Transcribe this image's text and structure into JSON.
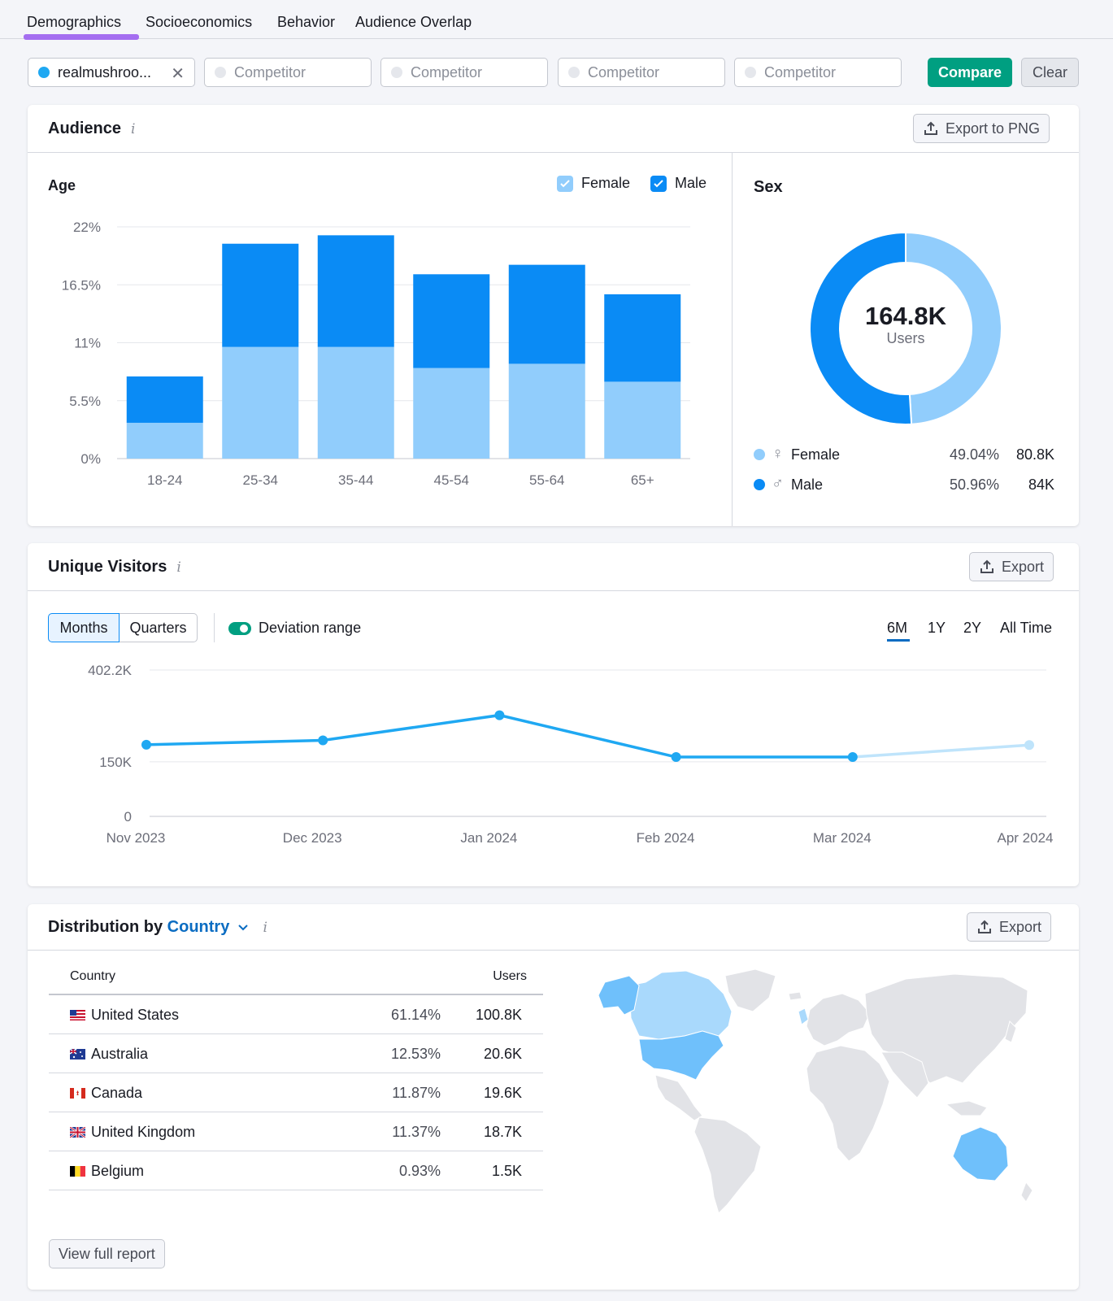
{
  "tabs": [
    {
      "label": "Demographics",
      "active": true
    },
    {
      "label": "Socioeconomics",
      "active": false
    },
    {
      "label": "Behavior",
      "active": false
    },
    {
      "label": "Audience Overlap",
      "active": false
    }
  ],
  "filters": {
    "domain": "realmushroo...",
    "competitor_placeholder": "Competitor",
    "compare_label": "Compare",
    "clear_label": "Clear"
  },
  "audience": {
    "title": "Audience",
    "export_label": "Export to PNG",
    "age": {
      "title": "Age",
      "legend_female": "Female",
      "legend_male": "Male"
    },
    "sex": {
      "title": "Sex",
      "total_value": "164.8K",
      "total_label": "Users",
      "female": {
        "label": "Female",
        "percent": "49.04%",
        "count": "80.8K"
      },
      "male": {
        "label": "Male",
        "percent": "50.96%",
        "count": "84K"
      }
    }
  },
  "unique_visitors": {
    "title": "Unique Visitors",
    "export_label": "Export",
    "granularity": [
      "Months",
      "Quarters"
    ],
    "deviation_label": "Deviation range",
    "ranges": [
      "6M",
      "1Y",
      "2Y",
      "All Time"
    ],
    "active_range": "6M"
  },
  "distribution": {
    "title_prefix": "Distribution by",
    "dimension": "Country",
    "export_label": "Export",
    "col_country": "Country",
    "col_users": "Users",
    "rows": [
      {
        "country": "United States",
        "percent": "61.14%",
        "users": "100.8K",
        "flag": "us-flag-icon"
      },
      {
        "country": "Australia",
        "percent": "12.53%",
        "users": "20.6K",
        "flag": "au-flag-icon"
      },
      {
        "country": "Canada",
        "percent": "11.87%",
        "users": "19.6K",
        "flag": "ca-flag-icon"
      },
      {
        "country": "United Kingdom",
        "percent": "11.37%",
        "users": "18.7K",
        "flag": "uk-flag-icon"
      },
      {
        "country": "Belgium",
        "percent": "0.93%",
        "users": "1.5K",
        "flag": "be-flag-icon"
      }
    ],
    "view_full_label": "View full report"
  },
  "colors": {
    "male": "#0a8bf5",
    "female": "#91cdfc",
    "accent": "#009f81",
    "tab_underline": "#a46ef0",
    "line": "#1fa8f2",
    "line_projection": "#bfe4fb",
    "map_land": "#e2e3e7",
    "map_high": "#6fc0fb",
    "map_mid": "#a9d9fc"
  },
  "chart_data": [
    {
      "type": "bar",
      "stacked": true,
      "title": "Age",
      "categories": [
        "18-24",
        "25-34",
        "35-44",
        "45-54",
        "55-64",
        "65+"
      ],
      "series": [
        {
          "name": "Female",
          "values": [
            3.4,
            10.6,
            10.6,
            8.6,
            9.0,
            7.3
          ]
        },
        {
          "name": "Male",
          "values": [
            4.4,
            9.8,
            10.6,
            8.9,
            9.4,
            8.3
          ]
        }
      ],
      "ylim": [
        0,
        22
      ],
      "y_ticks": [
        "0%",
        "5.5%",
        "11%",
        "16.5%",
        "22%"
      ],
      "grid": true,
      "legend": "top-right"
    },
    {
      "type": "pie",
      "donut": true,
      "title": "Sex",
      "labels": [
        "Female",
        "Male"
      ],
      "values": [
        49.04,
        50.96
      ]
    },
    {
      "type": "line",
      "x": [
        "Nov 2023",
        "Dec 2023",
        "Jan 2024",
        "Feb 2024",
        "Mar 2024",
        "Apr 2024"
      ],
      "values": [
        197000,
        209000,
        278000,
        163000,
        163000,
        196000
      ],
      "projected_last_point": true,
      "ylim": [
        0,
        402200
      ],
      "y_ticks": [
        "0",
        "150K",
        "402.2K"
      ],
      "grid": true
    }
  ]
}
